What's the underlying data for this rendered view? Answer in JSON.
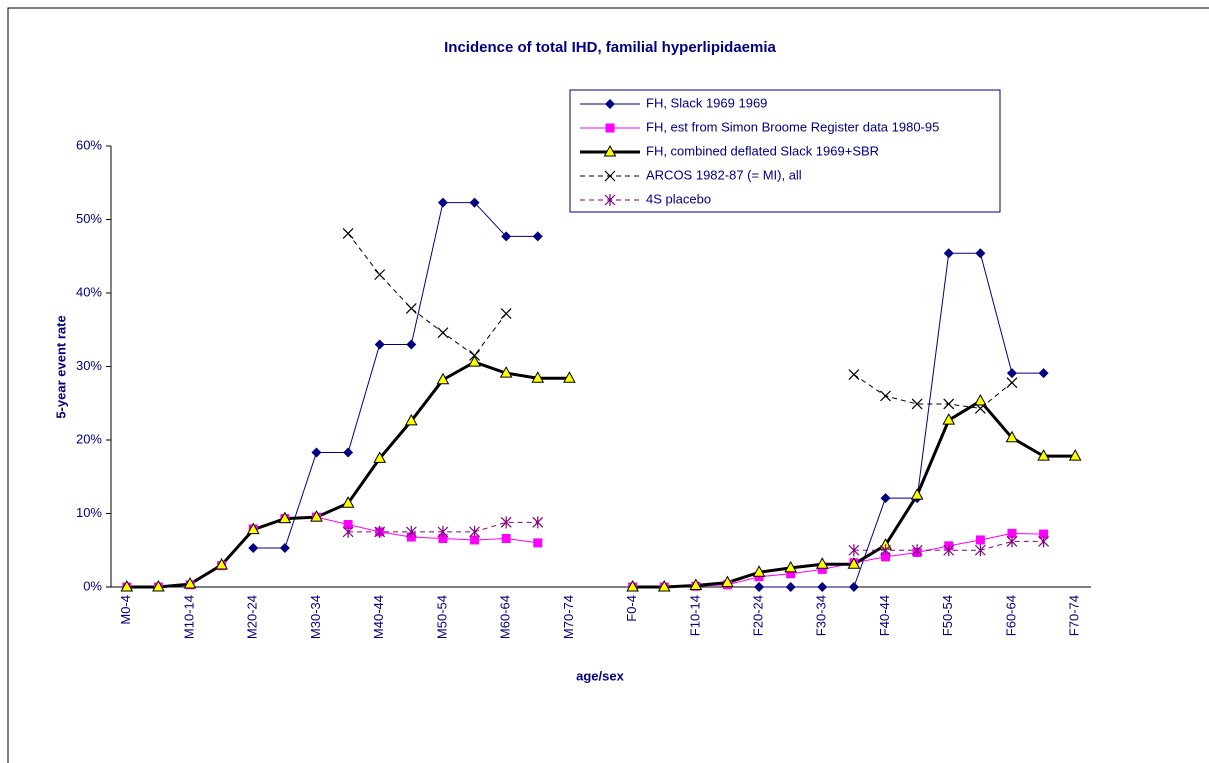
{
  "chart_data": {
    "type": "line",
    "title": "Incidence of total IHD, familial hyperlipidaemia",
    "x_label": "age/sex",
    "y_label": "5-year event rate",
    "categories": [
      "M0-4",
      null,
      "M10-14",
      null,
      "M20-24",
      null,
      "M30-34",
      null,
      "M40-44",
      null,
      "M50-54",
      null,
      "M60-64",
      null,
      "M70-74",
      null,
      "F0-4",
      null,
      "F10-14",
      null,
      "F20-24",
      null,
      "F30-34",
      null,
      "F40-44",
      null,
      "F50-54",
      null,
      "F60-64",
      null,
      "F70-74"
    ],
    "ylim": [
      0,
      60
    ],
    "yticks": [
      {
        "value": 0,
        "label": "0%"
      },
      {
        "value": 10,
        "label": "10%"
      },
      {
        "value": 20,
        "label": "20%"
      },
      {
        "value": 30,
        "label": "30%"
      },
      {
        "value": 40,
        "label": "40%"
      },
      {
        "value": 50,
        "label": "50%"
      },
      {
        "value": 60,
        "label": "60%"
      }
    ],
    "series": [
      {
        "name": "FH, Slack 1969 1969",
        "color": "#000080",
        "marker": "diamond",
        "dashed": false,
        "width": 1,
        "values": [
          null,
          null,
          null,
          null,
          5.3,
          5.3,
          18.3,
          18.3,
          33,
          33,
          52.3,
          52.3,
          47.7,
          47.7,
          null,
          null,
          null,
          null,
          null,
          null,
          0,
          0,
          0,
          0,
          12.1,
          12.1,
          45.4,
          45.4,
          29.1,
          29.1,
          null
        ]
      },
      {
        "name": "FH, est from Simon Broome Register data 1980-95",
        "color": "#ff00ff",
        "marker": "square",
        "dashed": false,
        "width": 1,
        "values": [
          0,
          0,
          0.3,
          2.9,
          7.9,
          9.3,
          9.5,
          8.5,
          7.5,
          6.8,
          6.6,
          6.4,
          6.6,
          6.0,
          null,
          null,
          0,
          0,
          0.1,
          0.3,
          1.4,
          1.8,
          2.4,
          3.3,
          4.1,
          4.7,
          5.6,
          6.4,
          7.3,
          7.2,
          null
        ]
      },
      {
        "name": "FH, combined deflated Slack 1969+SBR",
        "color": "#000000",
        "marker": "triangle",
        "marker_color": "#ffff00",
        "dashed": false,
        "width": 3,
        "values": [
          0,
          0,
          0.4,
          3.0,
          7.8,
          9.3,
          9.5,
          11.4,
          17.5,
          22.6,
          28.2,
          30.6,
          29.1,
          28.4,
          28.4,
          null,
          0,
          0,
          0.2,
          0.6,
          2.0,
          2.6,
          3.1,
          3.1,
          5.7,
          12.5,
          22.7,
          25.3,
          20.3,
          17.8,
          17.8
        ]
      },
      {
        "name": "ARCOS 1982-87 (= MI), all",
        "color": "#000000",
        "marker": "x",
        "dashed": true,
        "width": 1,
        "values": [
          null,
          null,
          null,
          null,
          null,
          null,
          null,
          48.1,
          42.5,
          37.9,
          34.6,
          31.5,
          37.2,
          null,
          null,
          null,
          null,
          null,
          null,
          null,
          null,
          null,
          null,
          28.9,
          26,
          24.9,
          24.9,
          24.3,
          27.8,
          null,
          null
        ]
      },
      {
        "name": "4S placebo",
        "color": "#800080",
        "marker": "star",
        "dashed": true,
        "width": 1,
        "values": [
          null,
          null,
          null,
          null,
          null,
          null,
          null,
          7.5,
          7.5,
          7.5,
          7.5,
          7.5,
          8.8,
          8.8,
          null,
          null,
          null,
          null,
          null,
          null,
          null,
          null,
          null,
          5.0,
          5.0,
          5.0,
          5.0,
          5.0,
          6.2,
          6.2,
          null
        ]
      }
    ]
  }
}
